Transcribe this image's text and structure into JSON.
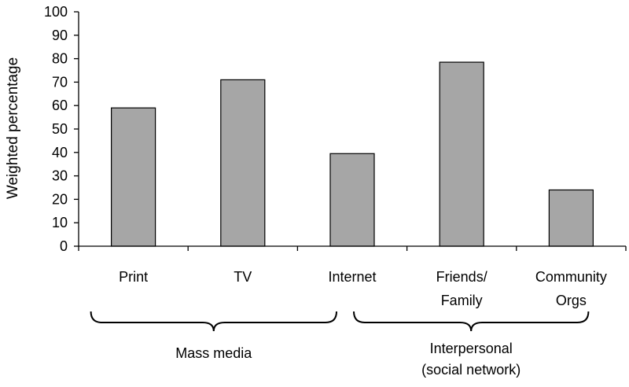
{
  "chart_data": {
    "type": "bar",
    "title": "",
    "xlabel": "",
    "ylabel": "Weighted percentage",
    "ylim": [
      0,
      100
    ],
    "yticks": [
      0,
      10,
      20,
      30,
      40,
      50,
      60,
      70,
      80,
      90,
      100
    ],
    "grid": false,
    "legend": "none",
    "bar_color": "#a6a6a6",
    "categories": [
      [
        "Print"
      ],
      [
        "TV"
      ],
      [
        "Internet"
      ],
      [
        "Friends/",
        "Family"
      ],
      [
        "Community",
        "Orgs"
      ]
    ],
    "values": [
      59,
      71,
      39.5,
      78.5,
      24
    ],
    "groups": [
      {
        "label": [
          "Mass media"
        ],
        "categories": [
          0,
          2
        ]
      },
      {
        "label": [
          "Interpersonal",
          "(social network)"
        ],
        "categories": [
          2,
          4
        ]
      }
    ]
  }
}
